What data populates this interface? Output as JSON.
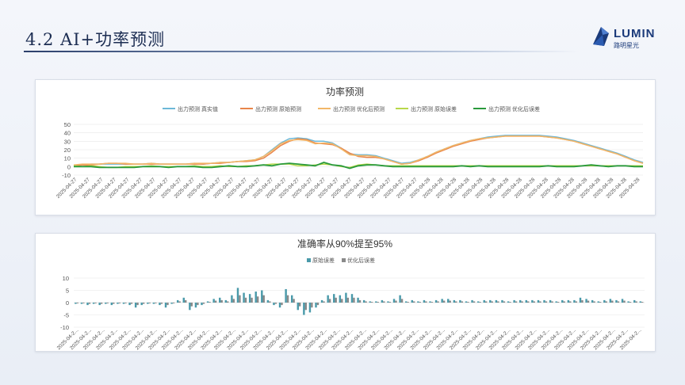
{
  "header": {
    "title": "4.2  AI+功率预测"
  },
  "logo": {
    "name": "LUMIN",
    "subtitle": "路明星光"
  },
  "colors": {
    "real": "#6cb8d8",
    "raw_pred": "#e8854a",
    "opt_pred": "#f2b768",
    "raw_err": "#b8d84a",
    "opt_err": "#2a9a3c",
    "bar_raw": "#4a9aaa",
    "bar_opt": "#8a8a8a"
  },
  "chart_data": [
    {
      "type": "line",
      "title": "功率预测",
      "ylim": [
        -10,
        50
      ],
      "yticks": [
        -10,
        0,
        10,
        20,
        30,
        40,
        50
      ],
      "x_tick_label": "2025-04-27",
      "x_tick_label_late": "2025-04-28",
      "x_tick_count": 44,
      "legend": "top",
      "series": [
        {
          "name": "出力预测 真实值",
          "key": "real",
          "values": [
            2,
            2,
            3,
            3,
            3,
            3,
            3,
            3,
            3,
            4,
            3,
            3,
            3,
            3,
            4,
            3,
            4,
            5,
            5,
            6,
            7,
            8,
            12,
            20,
            28,
            33,
            34,
            33,
            30,
            30,
            28,
            22,
            15,
            14,
            14,
            13,
            10,
            7,
            4,
            5,
            8,
            12,
            17,
            21,
            25,
            28,
            31,
            33,
            35,
            36,
            37,
            37,
            37,
            37,
            37,
            36,
            35,
            33,
            31,
            28,
            25,
            22,
            19,
            16,
            12,
            8,
            5
          ]
        },
        {
          "name": "出力预测 原始预测",
          "key": "raw_pred",
          "values": [
            1,
            2,
            2,
            3,
            4,
            4,
            3,
            3,
            3,
            3,
            3,
            3,
            3,
            3,
            3,
            3,
            4,
            4,
            5,
            6,
            6,
            7,
            10,
            17,
            25,
            30,
            33,
            32,
            28,
            27,
            26,
            22,
            16,
            12,
            11,
            11,
            9,
            6,
            3,
            4,
            7,
            11,
            16,
            20,
            24,
            27,
            30,
            32,
            34,
            35,
            36,
            36,
            36,
            36,
            36,
            35,
            34,
            32,
            30,
            27,
            24,
            21,
            18,
            15,
            11,
            7,
            4
          ]
        },
        {
          "name": "出力预测 优化后预测",
          "key": "opt_pred",
          "values": [
            2,
            3,
            3,
            3,
            4,
            4,
            4,
            3,
            3,
            4,
            3,
            3,
            3,
            3,
            4,
            4,
            4,
            5,
            5,
            6,
            7,
            8,
            12,
            19,
            27,
            31,
            32,
            31,
            27,
            28,
            27,
            21,
            14,
            13,
            13,
            12,
            9,
            6,
            3,
            4,
            8,
            12,
            17,
            21,
            25,
            28,
            31,
            33,
            34,
            35,
            36,
            36,
            36,
            36,
            36,
            35,
            34,
            32,
            30,
            27,
            24,
            21,
            18,
            15,
            11,
            7,
            4
          ]
        },
        {
          "name": "出力预测 原始误差",
          "key": "raw_err",
          "values": [
            1,
            0,
            1,
            0,
            -1,
            -1,
            0,
            0,
            0,
            1,
            0,
            0,
            0,
            0,
            1,
            0,
            0,
            1,
            0,
            0,
            1,
            1,
            2,
            3,
            3,
            3,
            1,
            1,
            2,
            3,
            2,
            0,
            -1,
            2,
            3,
            2,
            1,
            1,
            1,
            1,
            1,
            1,
            1,
            1,
            1,
            1,
            1,
            1,
            1,
            1,
            1,
            1,
            1,
            1,
            1,
            1,
            1,
            1,
            1,
            1,
            1,
            1,
            1,
            1,
            1,
            1,
            1
          ]
        },
        {
          "name": "出力预测 优化后误差",
          "key": "opt_err",
          "values": [
            0,
            0,
            0,
            -1,
            -1,
            -1,
            -1,
            -1,
            0,
            0,
            0,
            -1,
            0,
            0,
            0,
            -1,
            -1,
            0,
            1,
            0,
            0,
            1,
            2,
            1,
            3,
            4,
            3,
            2,
            1,
            5,
            2,
            1,
            -2,
            1,
            2,
            2,
            1,
            0,
            0,
            0,
            0,
            0,
            0,
            0,
            0,
            1,
            0,
            1,
            0,
            0,
            0,
            0,
            0,
            0,
            0,
            1,
            0,
            0,
            0,
            1,
            2,
            1,
            0,
            1,
            1,
            0,
            0
          ]
        }
      ]
    },
    {
      "type": "bar",
      "title": "准确率从90%提至95%",
      "ylim": [
        -10,
        10
      ],
      "yticks": [
        -10,
        -5,
        0,
        5,
        10
      ],
      "x_tick_label": "2025-04-2...",
      "x_tick_count": 44,
      "legend": "top",
      "series": [
        {
          "name": "原始误差",
          "key": "bar_raw",
          "values": [
            -0.5,
            -0.5,
            -1,
            -0.5,
            -1,
            -0.5,
            -1,
            -0.5,
            -0.5,
            -1,
            -2,
            -1,
            -0.5,
            -0.5,
            -1,
            -2,
            -0.5,
            1,
            2,
            -3,
            -2,
            -1,
            0.5,
            1.5,
            2,
            1,
            3,
            6,
            4,
            3.5,
            4.5,
            5,
            1,
            -1,
            -2,
            5.5,
            3,
            -3,
            -5,
            -4,
            -2,
            1,
            3,
            3.5,
            3,
            4,
            3.5,
            2,
            1,
            0.5,
            0.5,
            1,
            0.5,
            1.5,
            3,
            0.5,
            1,
            0.5,
            1,
            0.5,
            1,
            1.5,
            1.5,
            1,
            1,
            0.5,
            1,
            0.5,
            1,
            1,
            1,
            1,
            0.5,
            1,
            1,
            1,
            1,
            1,
            1,
            1,
            0.5,
            1,
            1,
            1,
            2,
            1.5,
            1,
            0.5,
            1,
            1.5,
            1,
            1.5,
            0.5,
            1,
            0.5
          ]
        },
        {
          "name": "优化后误差",
          "key": "bar_opt",
          "values": [
            -0.3,
            -0.3,
            -0.5,
            -0.3,
            -0.5,
            -0.3,
            -0.5,
            -0.3,
            -0.3,
            -0.5,
            -1,
            -0.5,
            -0.3,
            -0.3,
            -0.5,
            -1,
            -0.3,
            0.5,
            1,
            -1.5,
            -1,
            -0.5,
            0.3,
            0.8,
            1,
            0.5,
            1.5,
            3,
            2,
            2,
            2.5,
            3,
            0.5,
            -0.5,
            -1,
            3,
            1.5,
            -1.5,
            -3,
            -2,
            -1,
            0.5,
            1.5,
            2,
            1.5,
            2,
            2,
            1,
            0.5,
            0.3,
            0.3,
            0.5,
            0.3,
            0.8,
            1.5,
            0.3,
            0.5,
            0.3,
            0.5,
            0.3,
            0.5,
            0.8,
            0.8,
            0.5,
            0.5,
            0.3,
            0.5,
            0.3,
            0.5,
            0.5,
            0.5,
            0.5,
            0.3,
            0.5,
            0.5,
            0.5,
            0.5,
            0.5,
            0.5,
            0.5,
            0.3,
            0.5,
            0.5,
            0.5,
            1,
            0.8,
            0.5,
            0.3,
            0.5,
            0.8,
            0.5,
            0.8,
            0.3,
            0.5,
            0.3
          ]
        }
      ]
    }
  ]
}
